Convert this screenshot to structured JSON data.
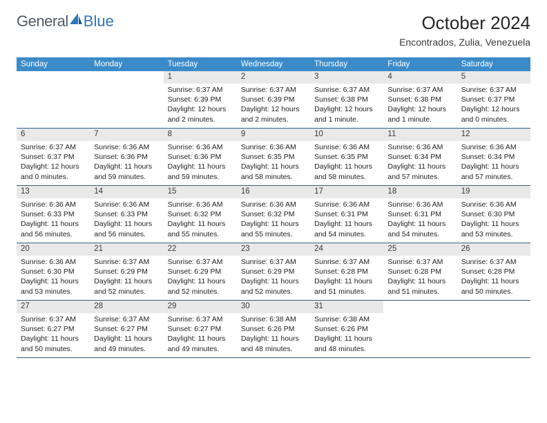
{
  "logo": {
    "textA": "General",
    "textB": "Blue"
  },
  "title": "October 2024",
  "location": "Encontrados, Zulia, Venezuela",
  "colors": {
    "header_bg": "#3b8bc9",
    "header_text": "#ffffff",
    "daynum_bg": "#e9e9e9",
    "week_border": "#2f5f87",
    "text": "#222222",
    "logo_gray": "#515a63",
    "logo_blue": "#2d76b8"
  },
  "weekdays": [
    "Sunday",
    "Monday",
    "Tuesday",
    "Wednesday",
    "Thursday",
    "Friday",
    "Saturday"
  ],
  "weeks": [
    [
      null,
      null,
      {
        "n": "1",
        "sunrise": "6:37 AM",
        "sunset": "6:39 PM",
        "daylight": "12 hours and 2 minutes."
      },
      {
        "n": "2",
        "sunrise": "6:37 AM",
        "sunset": "6:39 PM",
        "daylight": "12 hours and 2 minutes."
      },
      {
        "n": "3",
        "sunrise": "6:37 AM",
        "sunset": "6:38 PM",
        "daylight": "12 hours and 1 minute."
      },
      {
        "n": "4",
        "sunrise": "6:37 AM",
        "sunset": "6:38 PM",
        "daylight": "12 hours and 1 minute."
      },
      {
        "n": "5",
        "sunrise": "6:37 AM",
        "sunset": "6:37 PM",
        "daylight": "12 hours and 0 minutes."
      }
    ],
    [
      {
        "n": "6",
        "sunrise": "6:37 AM",
        "sunset": "6:37 PM",
        "daylight": "12 hours and 0 minutes."
      },
      {
        "n": "7",
        "sunrise": "6:36 AM",
        "sunset": "6:36 PM",
        "daylight": "11 hours and 59 minutes."
      },
      {
        "n": "8",
        "sunrise": "6:36 AM",
        "sunset": "6:36 PM",
        "daylight": "11 hours and 59 minutes."
      },
      {
        "n": "9",
        "sunrise": "6:36 AM",
        "sunset": "6:35 PM",
        "daylight": "11 hours and 58 minutes."
      },
      {
        "n": "10",
        "sunrise": "6:36 AM",
        "sunset": "6:35 PM",
        "daylight": "11 hours and 58 minutes."
      },
      {
        "n": "11",
        "sunrise": "6:36 AM",
        "sunset": "6:34 PM",
        "daylight": "11 hours and 57 minutes."
      },
      {
        "n": "12",
        "sunrise": "6:36 AM",
        "sunset": "6:34 PM",
        "daylight": "11 hours and 57 minutes."
      }
    ],
    [
      {
        "n": "13",
        "sunrise": "6:36 AM",
        "sunset": "6:33 PM",
        "daylight": "11 hours and 56 minutes."
      },
      {
        "n": "14",
        "sunrise": "6:36 AM",
        "sunset": "6:33 PM",
        "daylight": "11 hours and 56 minutes."
      },
      {
        "n": "15",
        "sunrise": "6:36 AM",
        "sunset": "6:32 PM",
        "daylight": "11 hours and 55 minutes."
      },
      {
        "n": "16",
        "sunrise": "6:36 AM",
        "sunset": "6:32 PM",
        "daylight": "11 hours and 55 minutes."
      },
      {
        "n": "17",
        "sunrise": "6:36 AM",
        "sunset": "6:31 PM",
        "daylight": "11 hours and 54 minutes."
      },
      {
        "n": "18",
        "sunrise": "6:36 AM",
        "sunset": "6:31 PM",
        "daylight": "11 hours and 54 minutes."
      },
      {
        "n": "19",
        "sunrise": "6:36 AM",
        "sunset": "6:30 PM",
        "daylight": "11 hours and 53 minutes."
      }
    ],
    [
      {
        "n": "20",
        "sunrise": "6:36 AM",
        "sunset": "6:30 PM",
        "daylight": "11 hours and 53 minutes."
      },
      {
        "n": "21",
        "sunrise": "6:37 AM",
        "sunset": "6:29 PM",
        "daylight": "11 hours and 52 minutes."
      },
      {
        "n": "22",
        "sunrise": "6:37 AM",
        "sunset": "6:29 PM",
        "daylight": "11 hours and 52 minutes."
      },
      {
        "n": "23",
        "sunrise": "6:37 AM",
        "sunset": "6:29 PM",
        "daylight": "11 hours and 52 minutes."
      },
      {
        "n": "24",
        "sunrise": "6:37 AM",
        "sunset": "6:28 PM",
        "daylight": "11 hours and 51 minutes."
      },
      {
        "n": "25",
        "sunrise": "6:37 AM",
        "sunset": "6:28 PM",
        "daylight": "11 hours and 51 minutes."
      },
      {
        "n": "26",
        "sunrise": "6:37 AM",
        "sunset": "6:28 PM",
        "daylight": "11 hours and 50 minutes."
      }
    ],
    [
      {
        "n": "27",
        "sunrise": "6:37 AM",
        "sunset": "6:27 PM",
        "daylight": "11 hours and 50 minutes."
      },
      {
        "n": "28",
        "sunrise": "6:37 AM",
        "sunset": "6:27 PM",
        "daylight": "11 hours and 49 minutes."
      },
      {
        "n": "29",
        "sunrise": "6:37 AM",
        "sunset": "6:27 PM",
        "daylight": "11 hours and 49 minutes."
      },
      {
        "n": "30",
        "sunrise": "6:38 AM",
        "sunset": "6:26 PM",
        "daylight": "11 hours and 48 minutes."
      },
      {
        "n": "31",
        "sunrise": "6:38 AM",
        "sunset": "6:26 PM",
        "daylight": "11 hours and 48 minutes."
      },
      null,
      null
    ]
  ],
  "labels": {
    "sunrise_prefix": "Sunrise: ",
    "sunset_prefix": "Sunset: ",
    "daylight_prefix": "Daylight: "
  }
}
